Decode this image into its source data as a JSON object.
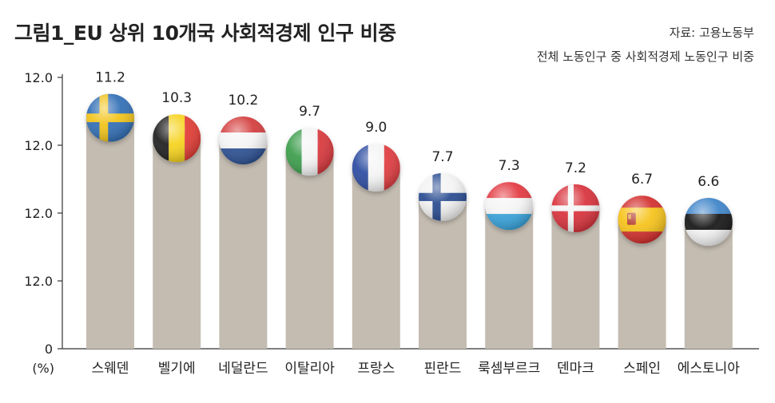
{
  "header": {
    "title": "그림1_EU 상위 10개국 사회적경제 인구 비중",
    "source": "자료: 고용노동부",
    "subtitle": "전체 노동인구 중 사회적경제 노동인구 비중"
  },
  "colors": {
    "bar": "#c4bcb1",
    "axis": "#333333",
    "text": "#222222"
  },
  "chart_data": {
    "type": "bar",
    "title": "그림1_EU 상위 10개국 사회적경제 인구 비중",
    "xlabel": "",
    "ylabel": "(%)",
    "unit_label": "(%)",
    "ylim": [
      0,
      12.0
    ],
    "y_tick_labels": [
      "0",
      "12.0",
      "12.0",
      "12.0",
      "12.0"
    ],
    "categories": [
      "스웨덴",
      "벨기에",
      "네덜란드",
      "이탈리아",
      "프랑스",
      "핀란드",
      "룩셈부르크",
      "덴마크",
      "스페인",
      "에스토니아"
    ],
    "values": [
      11.2,
      10.3,
      10.2,
      9.7,
      9.0,
      7.7,
      7.3,
      7.2,
      6.7,
      6.6
    ],
    "value_labels": [
      "11.2",
      "10.3",
      "10.2",
      "9.7",
      "9.0",
      "7.7",
      "7.3",
      "7.2",
      "6.7",
      "6.6"
    ],
    "flags": [
      "sweden-flag",
      "belgium-flag",
      "netherlands-flag",
      "italy-flag",
      "france-flag",
      "finland-flag",
      "luxembourg-flag",
      "denmark-flag",
      "spain-flag",
      "estonia-flag"
    ],
    "grid": false
  }
}
